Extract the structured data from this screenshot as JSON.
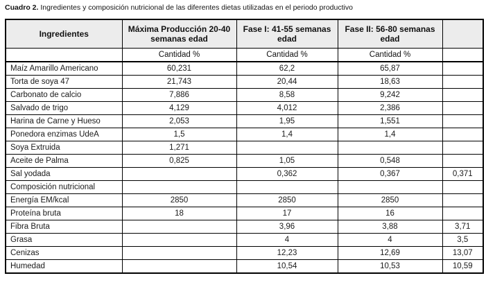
{
  "caption": {
    "label": "Cuadro 2.",
    "text": " Ingredientes y composición nutricional de las diferentes dietas utilizadas en el periodo productivo"
  },
  "table": {
    "columns": [
      "Ingredientes",
      "Máxima Producción 20-40 semanas edad",
      "Fase I: 41-55 semanas edad",
      "Fase II: 56-80 semanas edad",
      ""
    ],
    "subheader": [
      "",
      "Cantidad %",
      "Cantidad %",
      "Cantidad %",
      ""
    ],
    "rows": [
      [
        "Maíz Amarillo Americano",
        "60,231",
        "62,2",
        "65,87",
        ""
      ],
      [
        "Torta de soya 47",
        "21,743",
        "20,44",
        "18,63",
        ""
      ],
      [
        "Carbonato de calcio",
        "7,886",
        "8,58",
        "9,242",
        ""
      ],
      [
        "Salvado de trigo",
        "4,129",
        "4,012",
        "2,386",
        ""
      ],
      [
        "Harina de Carne y Hueso",
        "2,053",
        "1,95",
        "1,551",
        ""
      ],
      [
        "Ponedora enzimas UdeA",
        "1,5",
        "1,4",
        "1,4",
        ""
      ],
      [
        "Soya Extruida",
        "1,271",
        "",
        "",
        ""
      ],
      [
        "Aceite de Palma",
        "0,825",
        "1,05",
        "0,548",
        ""
      ],
      [
        "Sal yodada",
        "",
        "0,362",
        "0,367",
        "0,371"
      ],
      [
        "Composición nutricional",
        "",
        "",
        "",
        ""
      ],
      [
        "Energía EM/kcal",
        "2850",
        "2850",
        "2850",
        ""
      ],
      [
        "Proteína bruta",
        "18",
        "17",
        "16",
        ""
      ],
      [
        "Fibra Bruta",
        "",
        "3,96",
        "3,88",
        "3,71"
      ],
      [
        "Grasa",
        "",
        "4",
        "4",
        "3,5"
      ],
      [
        "Cenizas",
        "",
        "12,23",
        "12,69",
        "13,07"
      ],
      [
        "Humedad",
        "",
        "10,54",
        "10,53",
        "10,59"
      ]
    ]
  },
  "colors": {
    "header_bg": "#ececec",
    "border": "#000000",
    "text": "#1a1a1a"
  }
}
